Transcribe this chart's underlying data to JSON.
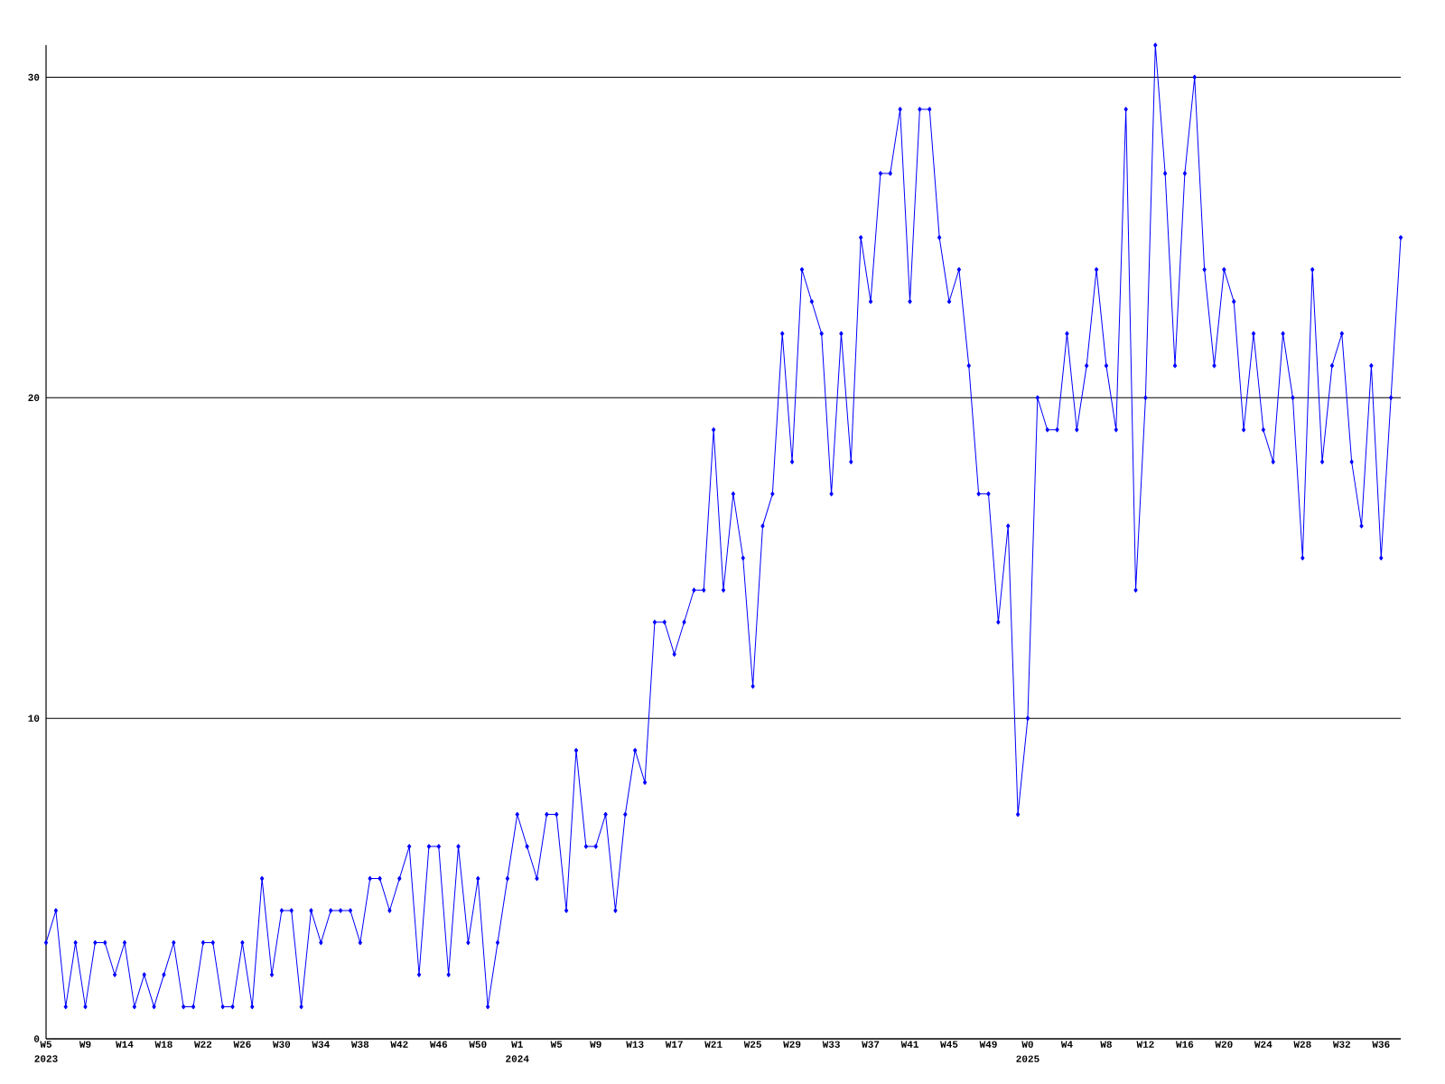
{
  "chart_data": {
    "type": "line",
    "categories": [
      "W5 2023",
      null,
      null,
      null,
      "W9",
      null,
      null,
      null,
      "W14",
      null,
      null,
      null,
      "W18",
      null,
      null,
      null,
      "W22",
      null,
      null,
      null,
      "W26",
      null,
      null,
      null,
      "W30",
      null,
      null,
      null,
      "W34",
      null,
      null,
      null,
      "W38",
      null,
      null,
      null,
      "W42",
      null,
      null,
      null,
      "W46",
      null,
      null,
      null,
      "W50",
      null,
      null,
      null,
      "W1 2024",
      null,
      null,
      null,
      "W5",
      null,
      null,
      null,
      "W9",
      null,
      null,
      null,
      "W13",
      null,
      null,
      null,
      "W17",
      null,
      null,
      null,
      "W21",
      null,
      null,
      null,
      "W25",
      null,
      null,
      null,
      "W29",
      null,
      null,
      null,
      "W33",
      null,
      null,
      null,
      "W37",
      null,
      null,
      null,
      "W41",
      null,
      null,
      null,
      "W45",
      null,
      null,
      null,
      "W49",
      null,
      null,
      null,
      "W0 2025",
      null,
      null,
      null,
      "W4",
      null,
      null,
      null,
      "W8",
      null,
      null,
      null,
      "W12",
      null,
      null,
      null,
      "W16",
      null,
      null,
      null,
      "W20",
      null,
      null,
      null,
      "W24",
      null,
      null,
      null,
      "W28",
      null,
      null,
      null,
      "W32",
      null,
      null,
      null,
      "W36",
      null,
      null
    ],
    "values": [
      3,
      4,
      1,
      3,
      1,
      3,
      3,
      2,
      3,
      1,
      2,
      1,
      2,
      3,
      1,
      1,
      3,
      3,
      1,
      1,
      3,
      1,
      5,
      2,
      4,
      4,
      1,
      4,
      3,
      4,
      4,
      4,
      3,
      5,
      5,
      4,
      5,
      6,
      2,
      6,
      6,
      2,
      6,
      3,
      5,
      1,
      3,
      5,
      7,
      6,
      5,
      7,
      7,
      4,
      9,
      6,
      6,
      7,
      4,
      7,
      9,
      8,
      13,
      13,
      12,
      13,
      14,
      14,
      19,
      14,
      17,
      15,
      11,
      16,
      17,
      22,
      18,
      24,
      23,
      22,
      17,
      22,
      18,
      25,
      23,
      27,
      27,
      29,
      23,
      29,
      29,
      25,
      23,
      24,
      21,
      17,
      17,
      13,
      16,
      7,
      10,
      20,
      19,
      19,
      22,
      19,
      21,
      24,
      21,
      19,
      29,
      14,
      20,
      31,
      27,
      21,
      27,
      30,
      24,
      21,
      24,
      23,
      19,
      22,
      19,
      18,
      22,
      20,
      15,
      24,
      18,
      21,
      22,
      18,
      16,
      21,
      15,
      20,
      25
    ],
    "color": "#0000ff",
    "marker": "diamond",
    "grid": "y",
    "ylim": [
      0,
      31
    ],
    "yticks": [
      0,
      10,
      20,
      30
    ]
  }
}
